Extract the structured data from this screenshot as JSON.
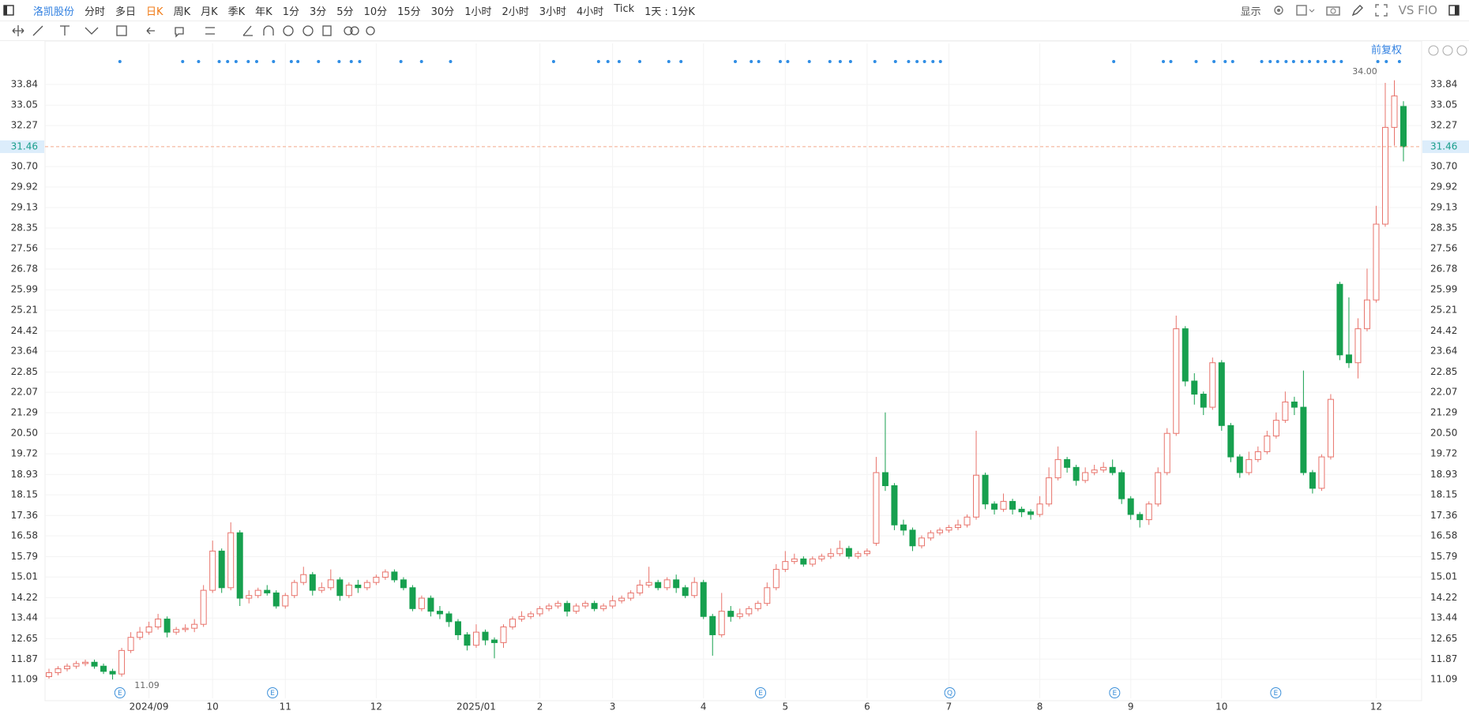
{
  "toolbar": {
    "stock": "洛凯股份",
    "periods": [
      "分时",
      "多日",
      "日K",
      "周K",
      "月K",
      "季K",
      "年K",
      "1分",
      "3分",
      "5分",
      "10分",
      "15分",
      "30分",
      "1小时",
      "2小时",
      "3小时",
      "4小时",
      "Tick",
      "1天 : 1分K"
    ],
    "display": "显示",
    "compare": "VS FIO"
  },
  "chart_data": {
    "type": "candlestick",
    "adjust": "前复权",
    "up_color": "#e8736b",
    "down_color": "#17a04f",
    "grid": true,
    "ylim": [
      10.37,
      35.41
    ],
    "yticks": [
      11.09,
      11.87,
      12.65,
      13.44,
      14.22,
      15.01,
      15.79,
      16.58,
      17.36,
      18.15,
      18.93,
      19.72,
      {
        "value": 20.5,
        "label": "20.50"
      },
      21.29,
      22.07,
      22.85,
      23.64,
      24.42,
      25.21,
      25.99,
      26.78,
      27.56,
      28.35,
      29.13,
      29.92,
      {
        "value": 30.7,
        "label": "30.70"
      },
      32.27,
      33.05,
      33.84
    ],
    "last_price": 31.46,
    "high_label": "34.00",
    "low_label": "11.09",
    "event_markers": [
      "E",
      "E",
      "E",
      "Q",
      "E",
      "E"
    ],
    "categories": [
      null,
      null,
      null,
      null,
      null,
      null,
      null,
      null,
      null,
      null,
      null,
      "2024/09",
      null,
      null,
      null,
      null,
      null,
      null,
      "10",
      null,
      null,
      null,
      null,
      null,
      null,
      null,
      "11",
      null,
      null,
      null,
      null,
      null,
      null,
      null,
      null,
      null,
      "12",
      null,
      null,
      null,
      null,
      null,
      null,
      null,
      null,
      null,
      null,
      "2025/01",
      null,
      null,
      null,
      null,
      null,
      null,
      "2",
      null,
      null,
      null,
      null,
      null,
      null,
      null,
      "3",
      null,
      null,
      null,
      null,
      null,
      null,
      null,
      null,
      null,
      "4",
      null,
      null,
      null,
      null,
      null,
      null,
      null,
      null,
      "5",
      null,
      null,
      null,
      null,
      null,
      null,
      null,
      null,
      "6",
      null,
      null,
      null,
      null,
      null,
      null,
      null,
      null,
      "7",
      null,
      null,
      null,
      null,
      null,
      null,
      null,
      null,
      null,
      "8",
      null,
      null,
      null,
      null,
      null,
      null,
      null,
      null,
      null,
      "9",
      null,
      null,
      null,
      null,
      null,
      null,
      null,
      null,
      null,
      "10",
      null,
      null,
      null,
      null,
      null,
      null,
      null,
      null,
      null,
      null,
      null,
      null,
      null,
      null,
      null,
      null,
      "12",
      null,
      null,
      null
    ],
    "open": [
      11.2,
      11.35,
      11.5,
      11.6,
      11.7,
      11.75,
      11.6,
      11.4,
      11.3,
      12.2,
      12.7,
      12.9,
      13.1,
      13.4,
      12.9,
      13.0,
      13.05,
      13.2,
      14.5,
      16.0,
      14.6,
      16.7,
      14.2,
      14.3,
      14.5,
      14.4,
      13.9,
      14.3,
      14.8,
      15.1,
      14.5,
      14.6,
      14.9,
      14.3,
      14.7,
      14.6,
      14.8,
      15.0,
      15.2,
      14.9,
      14.6,
      13.8,
      14.2,
      13.7,
      13.6,
      13.3,
      12.8,
      12.4,
      12.9,
      12.6,
      12.5,
      13.1,
      13.4,
      13.5,
      13.6,
      13.8,
      13.9,
      14.0,
      13.7,
      13.9,
      14.0,
      13.8,
      13.9,
      14.1,
      14.2,
      14.4,
      14.7,
      14.8,
      14.6,
      14.9,
      14.6,
      14.3,
      14.8,
      13.5,
      12.8,
      13.7,
      13.5,
      13.6,
      13.8,
      14.0,
      14.6,
      15.3,
      15.6,
      15.7,
      15.5,
      15.7,
      15.8,
      15.9,
      16.1,
      15.8,
      15.9,
      16.3,
      19.0,
      18.5,
      17.0,
      16.8,
      16.2,
      16.5,
      16.7,
      16.8,
      16.9,
      17.0,
      17.3,
      18.9,
      17.8,
      17.6,
      17.9,
      17.6,
      17.5,
      17.4,
      17.8,
      18.8,
      19.5,
      19.2,
      18.7,
      19.0,
      19.1,
      19.2,
      19.0,
      18.0,
      17.4,
      17.2,
      17.8,
      19.0,
      20.5,
      24.5,
      22.5,
      22.0,
      21.5,
      23.2,
      20.8,
      19.6,
      19.0,
      19.5,
      19.8,
      20.4,
      21.0,
      21.7,
      21.5,
      19.0,
      18.4,
      19.6,
      26.2,
      23.5,
      23.2,
      24.5,
      25.6,
      28.5,
      32.2,
      33.0
    ],
    "high": [
      11.5,
      11.6,
      11.7,
      11.8,
      11.85,
      11.85,
      11.7,
      11.5,
      12.3,
      12.9,
      13.1,
      13.3,
      13.6,
      13.5,
      13.1,
      13.2,
      13.4,
      14.7,
      16.4,
      16.1,
      17.1,
      16.8,
      14.5,
      14.6,
      14.7,
      14.5,
      14.4,
      14.9,
      15.4,
      15.2,
      14.8,
      15.3,
      15.0,
      14.8,
      14.9,
      14.9,
      15.1,
      15.3,
      15.3,
      15.0,
      14.7,
      14.3,
      14.3,
      13.9,
      13.7,
      13.4,
      12.9,
      13.2,
      13.0,
      12.7,
      13.2,
      13.5,
      13.7,
      13.7,
      13.9,
      14.0,
      14.1,
      14.1,
      14.0,
      14.1,
      14.1,
      14.0,
      14.3,
      14.3,
      14.5,
      14.9,
      15.4,
      14.9,
      15.0,
      15.1,
      14.7,
      15.0,
      14.9,
      13.6,
      14.4,
      13.9,
      13.8,
      13.9,
      14.1,
      14.8,
      15.5,
      16.0,
      15.9,
      15.8,
      15.8,
      15.9,
      16.1,
      16.4,
      16.2,
      16.0,
      16.1,
      19.6,
      21.3,
      18.6,
      17.2,
      16.9,
      16.6,
      16.8,
      16.9,
      17.0,
      17.2,
      17.4,
      20.6,
      19.0,
      17.9,
      18.2,
      18.0,
      17.7,
      17.6,
      18.1,
      19.2,
      20.0,
      19.6,
      19.3,
      19.2,
      19.3,
      19.4,
      19.5,
      19.1,
      18.1,
      17.5,
      17.9,
      19.2,
      20.7,
      25.0,
      24.6,
      22.8,
      22.1,
      23.4,
      23.3,
      20.9,
      19.7,
      19.8,
      20.0,
      20.6,
      21.3,
      22.1,
      21.9,
      22.9,
      19.1,
      19.7,
      22.0,
      26.3,
      25.7,
      24.9,
      26.8,
      29.2,
      33.9,
      34.0,
      33.2
    ],
    "low": [
      11.12,
      11.25,
      11.4,
      11.5,
      11.6,
      11.5,
      11.3,
      11.09,
      11.2,
      12.1,
      12.6,
      12.8,
      13.0,
      12.7,
      12.8,
      12.9,
      12.9,
      13.1,
      14.4,
      14.4,
      14.5,
      13.9,
      14.0,
      14.2,
      14.3,
      13.8,
      13.8,
      14.2,
      14.7,
      14.3,
      14.4,
      14.5,
      14.1,
      14.2,
      14.4,
      14.5,
      14.7,
      14.9,
      14.8,
      14.5,
      13.7,
      13.7,
      13.5,
      13.4,
      13.1,
      12.6,
      12.2,
      12.3,
      12.4,
      11.9,
      12.3,
      13.0,
      13.3,
      13.4,
      13.5,
      13.7,
      13.8,
      13.5,
      13.6,
      13.8,
      13.7,
      13.7,
      13.8,
      14.0,
      14.1,
      14.3,
      14.6,
      14.5,
      14.5,
      14.4,
      14.2,
      14.2,
      13.4,
      12.0,
      12.7,
      13.3,
      13.4,
      13.5,
      13.7,
      13.9,
      14.5,
      15.2,
      15.5,
      15.4,
      15.4,
      15.6,
      15.7,
      15.8,
      15.7,
      15.7,
      15.8,
      16.2,
      18.3,
      16.8,
      16.6,
      16.0,
      16.1,
      16.4,
      16.6,
      16.7,
      16.8,
      16.9,
      17.2,
      17.6,
      17.4,
      17.5,
      17.4,
      17.3,
      17.2,
      17.3,
      17.7,
      18.7,
      19.0,
      18.5,
      18.6,
      18.9,
      19.0,
      18.9,
      17.8,
      17.2,
      16.9,
      17.0,
      17.7,
      18.9,
      20.4,
      22.3,
      21.6,
      21.2,
      21.4,
      20.6,
      19.4,
      18.8,
      18.9,
      19.4,
      19.7,
      20.3,
      20.9,
      21.2,
      18.9,
      18.2,
      18.3,
      19.5,
      23.3,
      23.0,
      22.6,
      24.4,
      25.5,
      28.4,
      31.5,
      30.9
    ],
    "close": [
      11.35,
      11.5,
      11.6,
      11.7,
      11.75,
      11.6,
      11.4,
      11.3,
      12.2,
      12.7,
      12.9,
      13.1,
      13.4,
      12.9,
      13.0,
      13.05,
      13.2,
      14.5,
      16.0,
      14.6,
      16.7,
      14.2,
      14.3,
      14.5,
      14.4,
      13.9,
      14.3,
      14.8,
      15.1,
      14.5,
      14.6,
      14.9,
      14.3,
      14.7,
      14.6,
      14.8,
      15.0,
      15.2,
      14.9,
      14.6,
      13.8,
      14.2,
      13.7,
      13.6,
      13.3,
      12.8,
      12.4,
      12.9,
      12.6,
      12.5,
      13.1,
      13.4,
      13.5,
      13.6,
      13.8,
      13.9,
      14.0,
      13.7,
      13.9,
      14.0,
      13.8,
      13.9,
      14.1,
      14.2,
      14.4,
      14.7,
      14.8,
      14.6,
      14.9,
      14.6,
      14.3,
      14.8,
      13.5,
      12.8,
      13.7,
      13.5,
      13.6,
      13.8,
      14.0,
      14.6,
      15.3,
      15.6,
      15.7,
      15.5,
      15.7,
      15.8,
      15.9,
      16.1,
      15.8,
      15.9,
      16.0,
      19.0,
      18.5,
      17.0,
      16.8,
      16.2,
      16.5,
      16.7,
      16.8,
      16.9,
      17.0,
      17.3,
      18.9,
      17.8,
      17.6,
      17.9,
      17.6,
      17.5,
      17.4,
      17.8,
      18.8,
      19.5,
      19.2,
      18.7,
      19.0,
      19.1,
      19.2,
      19.0,
      18.0,
      17.4,
      17.2,
      17.8,
      19.0,
      20.5,
      24.5,
      22.5,
      22.0,
      21.5,
      23.2,
      20.8,
      19.6,
      19.0,
      19.5,
      19.8,
      20.4,
      21.0,
      21.7,
      21.5,
      19.0,
      18.4,
      19.6,
      21.8,
      23.5,
      23.2,
      24.5,
      25.6,
      28.5,
      32.2,
      33.4,
      31.46
    ]
  }
}
